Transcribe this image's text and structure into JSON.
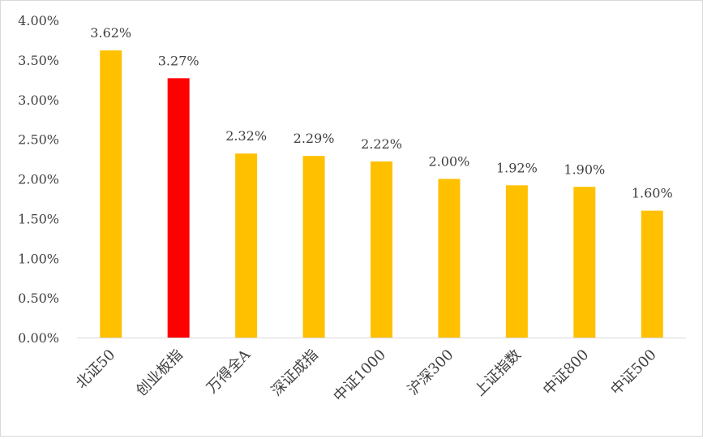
{
  "chart_data": {
    "type": "bar",
    "title": "",
    "xlabel": "",
    "ylabel": "",
    "categories": [
      "北证50",
      "创业板指",
      "万得全A",
      "深证成指",
      "中证1000",
      "沪深300",
      "上证指数",
      "中证800",
      "中证500"
    ],
    "values": [
      3.62,
      3.27,
      2.32,
      2.29,
      2.22,
      2.0,
      1.92,
      1.9,
      1.6
    ],
    "value_labels": [
      "3.62%",
      "3.27%",
      "2.32%",
      "2.29%",
      "2.22%",
      "2.00%",
      "1.92%",
      "1.90%",
      "1.60%"
    ],
    "highlight_index": 1,
    "ylim": [
      0,
      4.0
    ],
    "yticks": [
      0,
      0.5,
      1.0,
      1.5,
      2.0,
      2.5,
      3.0,
      3.5,
      4.0
    ],
    "ytick_labels": [
      "0.00%",
      "0.50%",
      "1.00%",
      "1.50%",
      "2.00%",
      "2.50%",
      "3.00%",
      "3.50%",
      "4.00%"
    ],
    "grid": false,
    "legend": "none",
    "colors": {
      "bar": "#FFC000",
      "highlight": "#FF0000",
      "axis": "#d9d9d9",
      "text": "#404040"
    }
  }
}
